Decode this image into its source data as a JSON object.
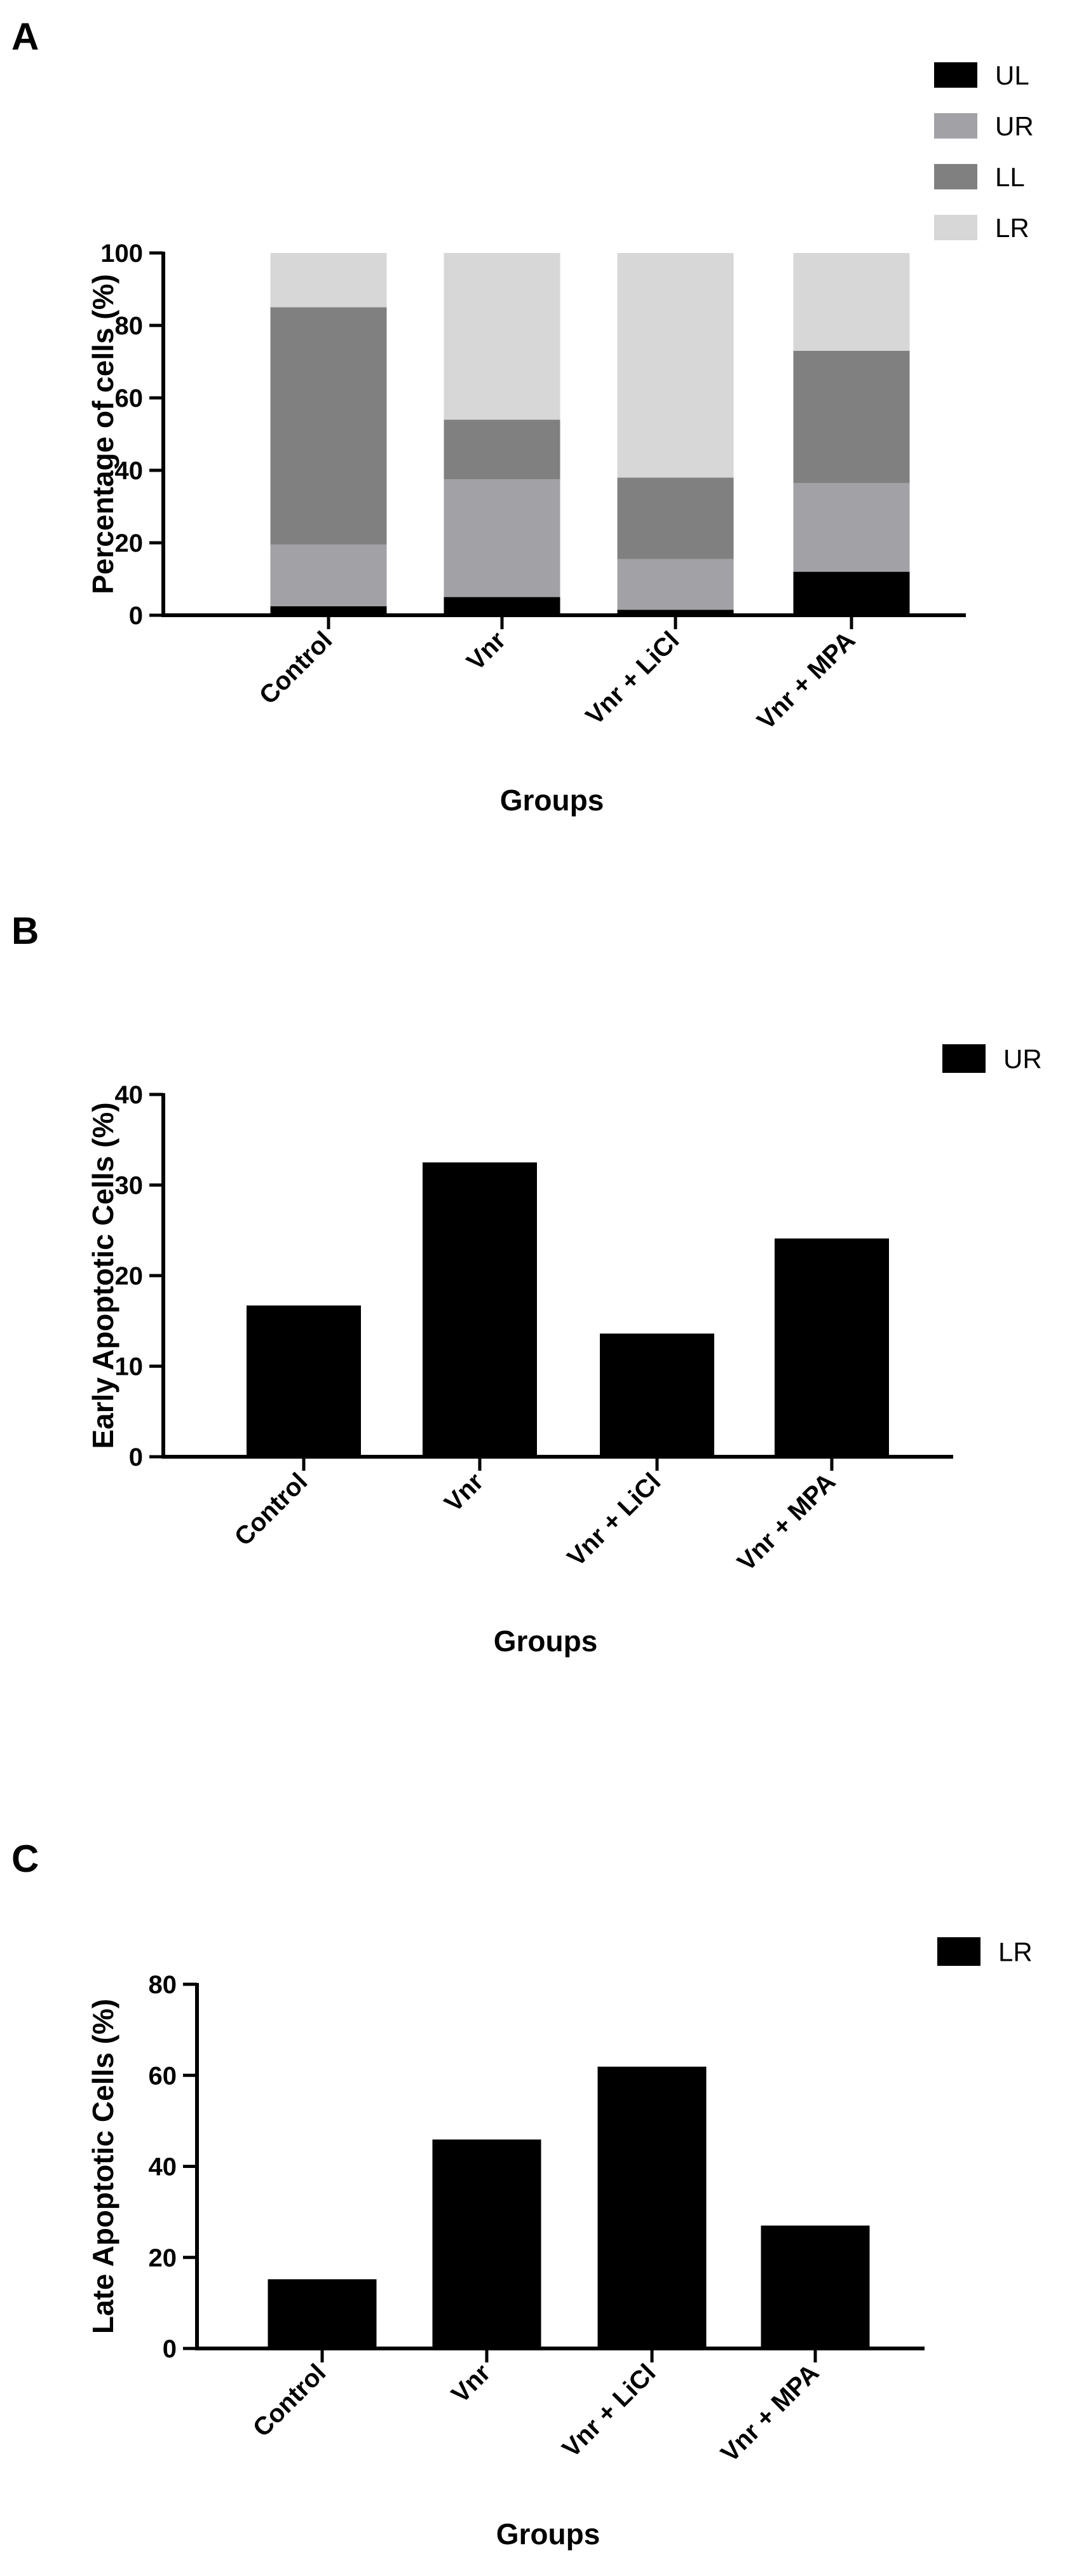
{
  "panels": [
    {
      "letter": "A",
      "chart_data": {
        "type": "bar",
        "stacked": true,
        "categories": [
          "Control",
          "Vnr",
          "Vnr + LiCl",
          "Vnr + MPA"
        ],
        "series": [
          {
            "name": "UL",
            "color": "#000000",
            "values": [
              2.5,
              5.0,
              1.5,
              12.0
            ]
          },
          {
            "name": "UR",
            "color": "#a2a2a6",
            "values": [
              17.0,
              32.5,
              14.0,
              24.5
            ]
          },
          {
            "name": "LL",
            "color": "#808080",
            "values": [
              65.5,
              16.5,
              22.5,
              36.5
            ]
          },
          {
            "name": "LR",
            "color": "#d7d7d7",
            "values": [
              15.0,
              46.0,
              62.0,
              27.0
            ]
          }
        ],
        "xlabel": "Groups",
        "ylabel": "Percentage of cells (%)",
        "ylim": [
          0,
          100
        ],
        "yticks": [
          0,
          20,
          40,
          60,
          80,
          100
        ],
        "legend": "top-right"
      }
    },
    {
      "letter": "B",
      "chart_data": {
        "type": "bar",
        "categories": [
          "Control",
          "Vnr",
          "Vnr + LiCl",
          "Vnr + MPA"
        ],
        "series": [
          {
            "name": "UR",
            "color": "#000000",
            "values": [
              16.7,
              32.5,
              13.6,
              24.1
            ]
          }
        ],
        "xlabel": "Groups",
        "ylabel": "Early Apoptotic Cells (%)",
        "ylim": [
          0,
          40
        ],
        "yticks": [
          0,
          10,
          20,
          30,
          40
        ],
        "legend": "top-right"
      }
    },
    {
      "letter": "C",
      "chart_data": {
        "type": "bar",
        "categories": [
          "Control",
          "Vnr",
          "Vnr + LiCl",
          "Vnr + MPA"
        ],
        "series": [
          {
            "name": "LR",
            "color": "#000000",
            "values": [
              15.2,
              45.9,
              61.9,
              27.0
            ]
          }
        ],
        "xlabel": "Groups",
        "ylabel": "Late Apoptotic Cells (%)",
        "ylim": [
          0,
          80
        ],
        "yticks": [
          0,
          20,
          40,
          60,
          80
        ],
        "legend": "top-right"
      }
    }
  ]
}
